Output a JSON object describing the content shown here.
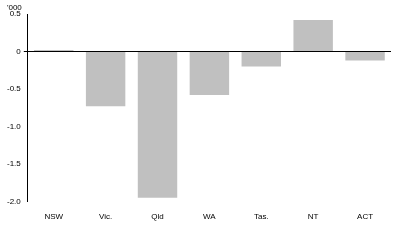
{
  "chart_data": {
    "type": "bar",
    "ylabel": "'000",
    "categories": [
      "NSW",
      "Vic.",
      "Qld",
      "WA",
      "Tas.",
      "NT",
      "ACT"
    ],
    "values": [
      0.02,
      -0.73,
      -1.95,
      -0.58,
      -0.2,
      0.42,
      -0.12
    ],
    "color": "#c0c0c0",
    "ylim": [
      -2.0,
      0.5
    ],
    "yticks": [
      {
        "value": -2.0,
        "label": "-2.0"
      },
      -1.5,
      {
        "value": -1.0,
        "label": "-1.0"
      },
      -0.5,
      0,
      0.5
    ],
    "grid": true
  }
}
